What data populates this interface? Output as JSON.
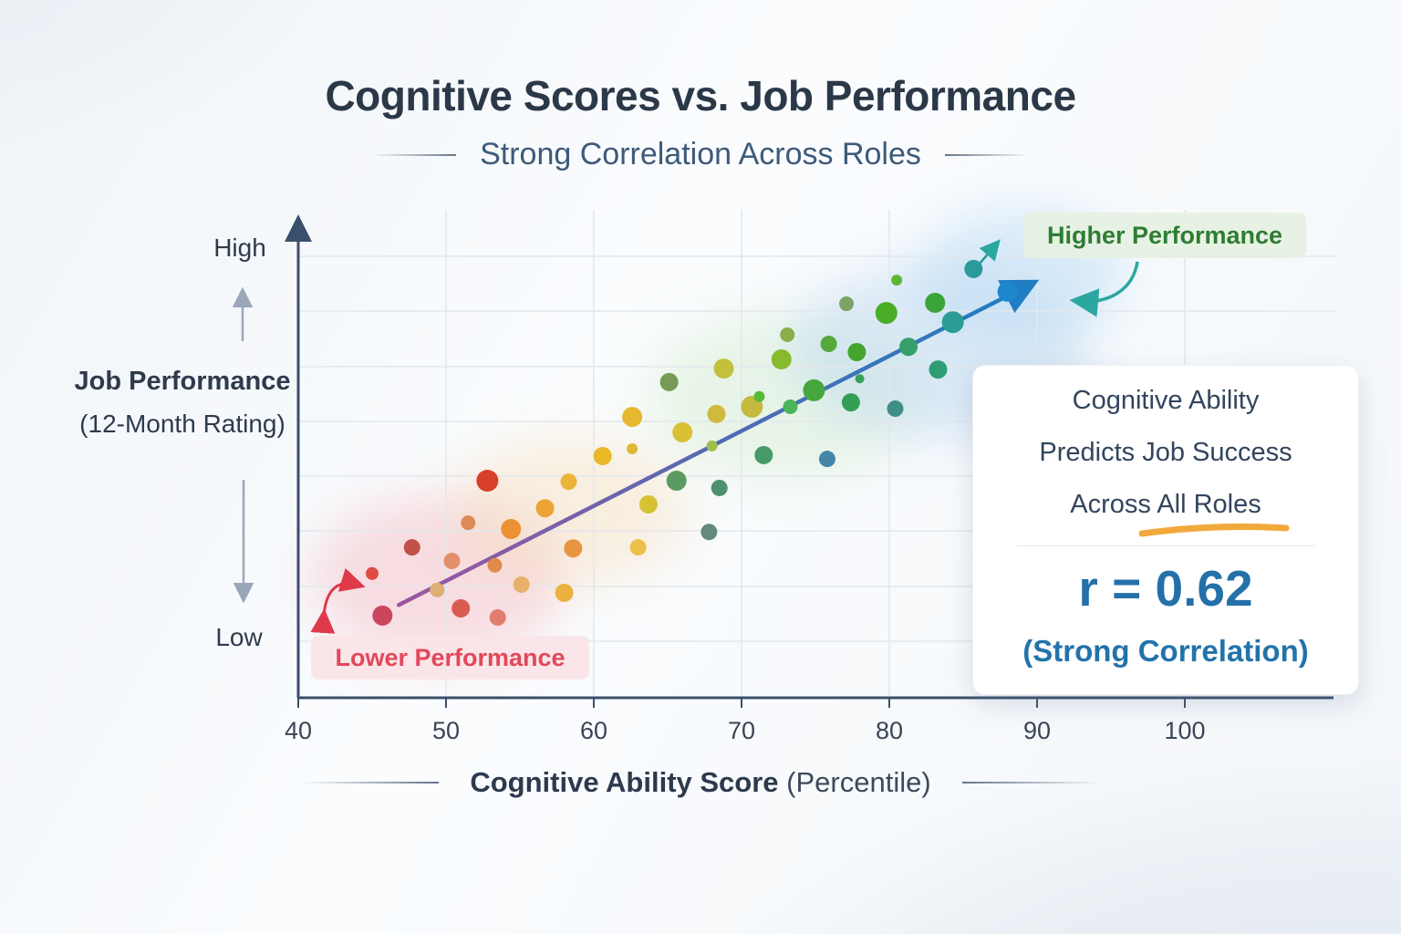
{
  "title": "Cognitive Scores vs. Job Performance",
  "subtitle": "Strong Correlation Across Roles",
  "y_axis": {
    "high_label": "High",
    "low_label": "Low",
    "title_bold": "Job Performance",
    "title_sub": "(12-Month Rating)"
  },
  "x_axis": {
    "title_bold": "Cognitive Ability Score",
    "title_sub": "(Percentile)"
  },
  "annotations": {
    "higher": {
      "label": "Higher Performance",
      "text_color": "#2e7d32",
      "bg": "#e5f1e2"
    },
    "lower": {
      "label": "Lower Performance",
      "text_color": "#e2485a",
      "bg": "#fae4e7"
    }
  },
  "insight_card": {
    "heading_lines": [
      "Cognitive Ability",
      "Predicts Job Success",
      "Across All Roles"
    ],
    "r_value": "r = 0.62",
    "r_note": "(Strong Correlation)",
    "accent_color": "#2470a8",
    "underline_color": "#f2a93b"
  },
  "chart_data": {
    "type": "scatter",
    "title": "Cognitive Scores vs. Job Performance",
    "xlabel": "Cognitive Ability Score (Percentile)",
    "ylabel": "Job Performance (12-Month Rating)",
    "x_ticks": [
      40,
      50,
      60,
      70,
      80,
      90,
      100
    ],
    "xlim": [
      40,
      110
    ],
    "ylim": [
      0,
      100
    ],
    "y_endpoint_labels": [
      "Low",
      "High"
    ],
    "grid": true,
    "r": 0.62,
    "trendline": {
      "x1": 46.8,
      "y1": 19.2,
      "x2": 89.4,
      "y2": 85.3,
      "color_start": "#9e56a0",
      "color_end": "#1f7ec2"
    },
    "points": [
      {
        "x": 45.7,
        "y": 17.0,
        "size": 11,
        "color": "#c9465c"
      },
      {
        "x": 45.0,
        "y": 25.7,
        "size": 7,
        "color": "#e04b44"
      },
      {
        "x": 47.7,
        "y": 31.1,
        "size": 9,
        "color": "#c05149"
      },
      {
        "x": 52.8,
        "y": 44.9,
        "size": 12,
        "color": "#d8402c"
      },
      {
        "x": 51.0,
        "y": 18.5,
        "size": 10,
        "color": "#d95b50"
      },
      {
        "x": 53.5,
        "y": 16.6,
        "size": 9,
        "color": "#e27d6e"
      },
      {
        "x": 50.4,
        "y": 28.3,
        "size": 9,
        "color": "#e2906a"
      },
      {
        "x": 51.5,
        "y": 36.2,
        "size": 8,
        "color": "#dd8a58"
      },
      {
        "x": 49.4,
        "y": 22.3,
        "size": 8,
        "color": "#dcaf74"
      },
      {
        "x": 54.4,
        "y": 34.9,
        "size": 11,
        "color": "#ec9234"
      },
      {
        "x": 53.3,
        "y": 27.4,
        "size": 8,
        "color": "#e08a4d"
      },
      {
        "x": 55.1,
        "y": 23.4,
        "size": 9,
        "color": "#e8b06a"
      },
      {
        "x": 56.7,
        "y": 39.2,
        "size": 10,
        "color": "#eca335"
      },
      {
        "x": 58.3,
        "y": 44.7,
        "size": 9,
        "color": "#eab43a"
      },
      {
        "x": 58.6,
        "y": 30.9,
        "size": 10,
        "color": "#e89440"
      },
      {
        "x": 58.0,
        "y": 21.7,
        "size": 10,
        "color": "#ecb23f"
      },
      {
        "x": 60.6,
        "y": 50.0,
        "size": 10,
        "color": "#eab827"
      },
      {
        "x": 62.6,
        "y": 58.1,
        "size": 11,
        "color": "#e5b830"
      },
      {
        "x": 62.6,
        "y": 51.5,
        "size": 6,
        "color": "#e0b838"
      },
      {
        "x": 63.0,
        "y": 31.1,
        "size": 9,
        "color": "#ecc04a"
      },
      {
        "x": 63.7,
        "y": 40.0,
        "size": 10,
        "color": "#d6c232"
      },
      {
        "x": 66.0,
        "y": 54.9,
        "size": 11,
        "color": "#d8c133"
      },
      {
        "x": 68.8,
        "y": 68.1,
        "size": 11,
        "color": "#c3c03e"
      },
      {
        "x": 68.3,
        "y": 58.7,
        "size": 10,
        "color": "#d0b93c"
      },
      {
        "x": 68.0,
        "y": 52.1,
        "size": 6,
        "color": "#9fbf4a"
      },
      {
        "x": 70.7,
        "y": 60.2,
        "size": 12,
        "color": "#c3ba3e"
      },
      {
        "x": 65.1,
        "y": 65.3,
        "size": 10,
        "color": "#759b55"
      },
      {
        "x": 73.1,
        "y": 75.1,
        "size": 8,
        "color": "#8aac4a"
      },
      {
        "x": 77.1,
        "y": 81.5,
        "size": 8,
        "color": "#7ba466"
      },
      {
        "x": 65.6,
        "y": 44.9,
        "size": 11,
        "color": "#5b9a60"
      },
      {
        "x": 68.5,
        "y": 43.4,
        "size": 9,
        "color": "#4f8f72"
      },
      {
        "x": 67.8,
        "y": 34.3,
        "size": 9,
        "color": "#64897e"
      },
      {
        "x": 71.2,
        "y": 62.3,
        "size": 6,
        "color": "#58ba3a"
      },
      {
        "x": 72.7,
        "y": 70.0,
        "size": 11,
        "color": "#87bb2e"
      },
      {
        "x": 73.3,
        "y": 60.2,
        "size": 8,
        "color": "#4ab558"
      },
      {
        "x": 74.9,
        "y": 63.6,
        "size": 12,
        "color": "#46a63e"
      },
      {
        "x": 75.9,
        "y": 73.2,
        "size": 9,
        "color": "#56a83a"
      },
      {
        "x": 77.8,
        "y": 71.5,
        "size": 10,
        "color": "#44a52e"
      },
      {
        "x": 79.8,
        "y": 79.6,
        "size": 12,
        "color": "#4aad28"
      },
      {
        "x": 80.5,
        "y": 86.4,
        "size": 6,
        "color": "#5cb832"
      },
      {
        "x": 83.1,
        "y": 81.7,
        "size": 11,
        "color": "#3aa438"
      },
      {
        "x": 77.4,
        "y": 61.1,
        "size": 10,
        "color": "#359e55"
      },
      {
        "x": 81.3,
        "y": 72.6,
        "size": 10,
        "color": "#35a06a"
      },
      {
        "x": 78.0,
        "y": 66.0,
        "size": 5,
        "color": "#3aa05a"
      },
      {
        "x": 71.5,
        "y": 50.2,
        "size": 10,
        "color": "#459a68"
      },
      {
        "x": 75.8,
        "y": 49.4,
        "size": 9,
        "color": "#4486a8"
      },
      {
        "x": 80.4,
        "y": 59.8,
        "size": 9,
        "color": "#3f8e87"
      },
      {
        "x": 83.3,
        "y": 67.9,
        "size": 10,
        "color": "#2f9d74"
      },
      {
        "x": 84.3,
        "y": 77.7,
        "size": 12,
        "color": "#2b9d94"
      },
      {
        "x": 85.7,
        "y": 88.7,
        "size": 10,
        "color": "#2a9a9a"
      },
      {
        "x": 88.0,
        "y": 84.0,
        "size": 11,
        "color": "#1e88cc"
      }
    ]
  }
}
